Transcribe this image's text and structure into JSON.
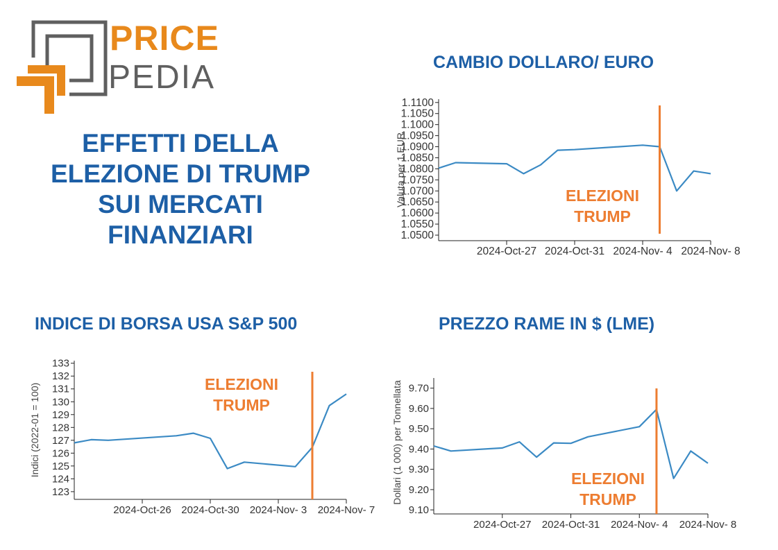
{
  "brand": {
    "word1": "PRICE",
    "word2": "PEDIA"
  },
  "headline": {
    "lines": [
      "EFFETTI DELLA",
      "ELEZIONE DI TRUMP",
      "SUI MERCATI",
      "FINANZIARI"
    ]
  },
  "colors": {
    "title": "#1d5fa6",
    "series": "#3b8ac4",
    "marker": "#ed7d31",
    "logo_orange": "#e8891c",
    "logo_grey": "#5f5f5f"
  },
  "chart_data": [
    {
      "type": "line",
      "title": "CAMBIO DOLLARO/ EURO",
      "ylabel": "Valuta per 1 EUR",
      "xlabel": "",
      "ylim": [
        1.0475,
        1.1115
      ],
      "xlim": [
        "2024-10-23",
        "2024-11-08"
      ],
      "y_ticks": [
        "1.0500",
        "1.0550",
        "1.0600",
        "1.0650",
        "1.0700",
        "1.0750",
        "1.0800",
        "1.0850",
        "1.0900",
        "1.0950",
        "1.1000",
        "1.1050",
        "1.1100"
      ],
      "x_ticks": [
        {
          "date": "2024-10-27",
          "label": "2024-Oct-27"
        },
        {
          "date": "2024-10-31",
          "label": "2024-Oct-31"
        },
        {
          "date": "2024-11-04",
          "label": "2024-Nov- 4"
        },
        {
          "date": "2024-11-08",
          "label": "2024-Nov- 8"
        }
      ],
      "x": [
        "2024-10-23",
        "2024-10-24",
        "2024-10-27",
        "2024-10-28",
        "2024-10-29",
        "2024-10-30",
        "2024-10-31",
        "2024-11-04",
        "2024-11-05",
        "2024-11-06",
        "2024-11-07",
        "2024-11-08"
      ],
      "y": [
        1.0803,
        1.0828,
        1.0823,
        1.0778,
        1.0818,
        1.0884,
        1.0887,
        1.0907,
        1.09,
        1.07,
        1.079,
        1.0778
      ],
      "event": {
        "date": "2024-11-05",
        "label_lines": [
          "ELEZIONI",
          "TRUMP"
        ]
      }
    },
    {
      "type": "line",
      "title": "INDICE DI BORSA USA S&P 500",
      "ylabel": "Indici (2022-01 = 100)",
      "xlabel": "",
      "ylim": [
        122.4,
        133.2
      ],
      "xlim": [
        "2024-10-22",
        "2024-11-07"
      ],
      "y_ticks": [
        "123",
        "124",
        "125",
        "126",
        "127",
        "128",
        "129",
        "130",
        "131",
        "132",
        "133"
      ],
      "x_ticks": [
        {
          "date": "2024-10-26",
          "label": "2024-Oct-26"
        },
        {
          "date": "2024-10-30",
          "label": "2024-Oct-30"
        },
        {
          "date": "2024-11-03",
          "label": "2024-Nov- 3"
        },
        {
          "date": "2024-11-07",
          "label": "2024-Nov- 7"
        }
      ],
      "x": [
        "2024-10-22",
        "2024-10-23",
        "2024-10-24",
        "2024-10-28",
        "2024-10-29",
        "2024-10-30",
        "2024-10-31",
        "2024-11-01",
        "2024-11-04",
        "2024-11-05",
        "2024-11-06",
        "2024-11-07"
      ],
      "y": [
        126.8,
        127.05,
        127.0,
        127.35,
        127.55,
        127.15,
        124.8,
        125.3,
        124.95,
        126.45,
        129.7,
        130.6
      ],
      "event": {
        "date": "2024-11-05",
        "label_lines": [
          "ELEZIONI",
          "TRUMP"
        ]
      }
    },
    {
      "type": "line",
      "title": "PREZZO RAME IN $ (LME)",
      "ylabel": "Dollari (1 000) per Tonnellata",
      "xlabel": "",
      "ylim": [
        9.08,
        9.75
      ],
      "xlim": [
        "2024-10-23",
        "2024-11-08"
      ],
      "y_ticks": [
        "9.10",
        "9.20",
        "9.30",
        "9.40",
        "9.50",
        "9.60",
        "9.70"
      ],
      "x_ticks": [
        {
          "date": "2024-10-27",
          "label": "2024-Oct-27"
        },
        {
          "date": "2024-10-31",
          "label": "2024-Oct-31"
        },
        {
          "date": "2024-11-04",
          "label": "2024-Nov- 4"
        },
        {
          "date": "2024-11-08",
          "label": "2024-Nov- 8"
        }
      ],
      "x": [
        "2024-10-23",
        "2024-10-24",
        "2024-10-27",
        "2024-10-28",
        "2024-10-29",
        "2024-10-30",
        "2024-10-31",
        "2024-11-01",
        "2024-11-04",
        "2024-11-05",
        "2024-11-06",
        "2024-11-07",
        "2024-11-08"
      ],
      "y": [
        9.415,
        9.39,
        9.405,
        9.435,
        9.36,
        9.43,
        9.428,
        9.46,
        9.51,
        9.595,
        9.255,
        9.39,
        9.33
      ],
      "event": {
        "date": "2024-11-05",
        "label_lines": [
          "ELEZIONI",
          "TRUMP"
        ]
      }
    }
  ]
}
